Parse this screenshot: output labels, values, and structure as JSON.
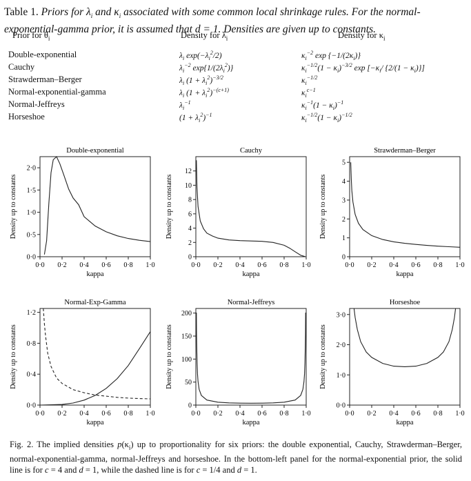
{
  "table": {
    "caption_label": "Table 1.",
    "caption_text": "Priors for λi and κi associated with some common local shrinkage rules. For the normal-exponential-gamma prior, it is assumed that d = 1. Densities are given up to constants.",
    "columns": [
      "Prior for θi",
      "Density for λi",
      "Density for κi"
    ],
    "rows": [
      {
        "prior": "Double-exponential",
        "lambda": "λi exp(−λi²/2)",
        "kappa": "κi⁻² exp{−1/(2κi)}"
      },
      {
        "prior": "Cauchy",
        "lambda": "λi⁻² exp{1/(2λi²)}",
        "kappa": "κi^−1/2(1 − κi)^−3/2 exp[−κi/{2/(1 − κi)}]"
      },
      {
        "prior": "Strawderman–Berger",
        "lambda": "λi (1 + λi²)^−3/2",
        "kappa": "κi^−1/2"
      },
      {
        "prior": "Normal-exponential-gamma",
        "lambda": "λi (1 + λi²)^−(c+1)",
        "kappa": "κi^c−1"
      },
      {
        "prior": "Normal-Jeffreys",
        "lambda": "λi⁻¹",
        "kappa": "κi⁻¹(1 − κi)⁻¹"
      },
      {
        "prior": "Horseshoe",
        "lambda": "(1 + λi²)⁻¹",
        "kappa": "κi^−1/2(1 − κi)^−1/2"
      }
    ]
  },
  "chart_data": [
    {
      "type": "line",
      "title": "Double-exponential",
      "xlabel": "kappa",
      "ylabel": "Density up to constants",
      "xlim": [
        0,
        1
      ],
      "ylim": [
        0,
        2.25
      ],
      "xticks": [
        "0·0",
        "0·2",
        "0·4",
        "0·6",
        "0·8",
        "1·0"
      ],
      "yticks": [
        "0·0",
        "0·5",
        "1·0",
        "1·5",
        "2·0"
      ],
      "series": [
        {
          "style": "solid",
          "x": [
            0.04,
            0.06,
            0.08,
            0.1,
            0.12,
            0.15,
            0.18,
            0.22,
            0.26,
            0.3,
            0.35,
            0.4,
            0.5,
            0.6,
            0.7,
            0.8,
            0.9,
            1.0
          ],
          "y": [
            0.05,
            0.36,
            1.19,
            1.89,
            2.18,
            2.28,
            2.09,
            1.81,
            1.52,
            1.32,
            1.17,
            0.9,
            0.69,
            0.56,
            0.47,
            0.41,
            0.37,
            0.34
          ]
        }
      ]
    },
    {
      "type": "line",
      "title": "Cauchy",
      "xlabel": "kappa",
      "ylabel": "Density up to constants",
      "xlim": [
        0,
        1
      ],
      "ylim": [
        0,
        14
      ],
      "xticks": [
        "0·0",
        "0·2",
        "0·4",
        "0·6",
        "0·8",
        "1·0"
      ],
      "yticks": [
        "0",
        "2",
        "4",
        "6",
        "8",
        "10",
        "12"
      ],
      "series": [
        {
          "style": "solid",
          "x": [
            0.005,
            0.01,
            0.02,
            0.04,
            0.07,
            0.1,
            0.15,
            0.2,
            0.3,
            0.4,
            0.5,
            0.6,
            0.7,
            0.8,
            0.85,
            0.9,
            0.95,
            0.99
          ],
          "y": [
            13.5,
            9.8,
            7.0,
            5.0,
            3.9,
            3.3,
            2.9,
            2.6,
            2.35,
            2.25,
            2.2,
            2.15,
            2.0,
            1.6,
            1.2,
            0.7,
            0.2,
            0.02
          ]
        }
      ]
    },
    {
      "type": "line",
      "title": "Strawderman–Berger",
      "xlabel": "kappa",
      "ylabel": "Density up to constants",
      "xlim": [
        0,
        1
      ],
      "ylim": [
        0,
        5.3
      ],
      "xticks": [
        "0·0",
        "0·2",
        "0·4",
        "0·6",
        "0·8",
        "1·0"
      ],
      "yticks": [
        "0",
        "1",
        "2",
        "3",
        "4",
        "5"
      ],
      "series": [
        {
          "style": "solid",
          "x": [
            0.01,
            0.015,
            0.02,
            0.03,
            0.05,
            0.08,
            0.12,
            0.2,
            0.3,
            0.4,
            0.5,
            0.6,
            0.7,
            0.8,
            0.9,
            1.0
          ],
          "y": [
            5.0,
            4.1,
            3.5,
            2.9,
            2.24,
            1.77,
            1.44,
            1.12,
            0.91,
            0.79,
            0.71,
            0.65,
            0.6,
            0.56,
            0.53,
            0.5
          ]
        }
      ]
    },
    {
      "type": "line",
      "title": "Normal-Exp-Gamma",
      "xlabel": "kappa",
      "ylabel": "Density up to constants",
      "xlim": [
        0,
        1
      ],
      "ylim": [
        0,
        1.25
      ],
      "xticks": [
        "0·0",
        "0·2",
        "0·4",
        "0·6",
        "0·8",
        "1·0"
      ],
      "yticks": [
        "0·0",
        "0·4",
        "0·8",
        "1·2"
      ],
      "series": [
        {
          "name": "c = 4, d = 1",
          "style": "solid",
          "x": [
            0,
            0.2,
            0.3,
            0.4,
            0.5,
            0.6,
            0.7,
            0.8,
            0.9,
            1.0
          ],
          "y": [
            0,
            0.008,
            0.027,
            0.064,
            0.125,
            0.216,
            0.343,
            0.512,
            0.729,
            0.95
          ]
        },
        {
          "name": "c = 1/4, d = 1",
          "style": "dashed",
          "x": [
            0.03,
            0.04,
            0.05,
            0.07,
            0.1,
            0.15,
            0.2,
            0.3,
            0.4,
            0.5,
            0.6,
            0.7,
            0.8,
            0.9,
            1.0
          ],
          "y": [
            1.25,
            1.05,
            0.9,
            0.67,
            0.5,
            0.35,
            0.28,
            0.2,
            0.16,
            0.13,
            0.115,
            0.1,
            0.09,
            0.085,
            0.08
          ]
        }
      ]
    },
    {
      "type": "line",
      "title": "Normal-Jeffreys",
      "xlabel": "kappa",
      "ylabel": "Density up to constants",
      "xlim": [
        0,
        1
      ],
      "ylim": [
        0,
        210
      ],
      "xticks": [
        "0·0",
        "0·2",
        "0·4",
        "0·6",
        "0·8",
        "1·0"
      ],
      "yticks": [
        "0",
        "50",
        "100",
        "150",
        "200"
      ],
      "series": [
        {
          "style": "solid",
          "x": [
            0.005,
            0.0065,
            0.008,
            0.011,
            0.015,
            0.02,
            0.03,
            0.05,
            0.1,
            0.2,
            0.3,
            0.4,
            0.5,
            0.6,
            0.7,
            0.8,
            0.9,
            0.95,
            0.97,
            0.98,
            0.985,
            0.989,
            0.992,
            0.9935,
            0.995
          ],
          "y": [
            201,
            155,
            126,
            92,
            68,
            51,
            34,
            21,
            11,
            6.3,
            4.8,
            4.2,
            4.0,
            4.2,
            4.8,
            6.3,
            11,
            21,
            34,
            51,
            68,
            92,
            126,
            155,
            201
          ]
        }
      ]
    },
    {
      "type": "line",
      "title": "Horseshoe",
      "xlabel": "kappa",
      "ylabel": "Density up to constants",
      "xlim": [
        0,
        1
      ],
      "ylim": [
        0,
        3.2
      ],
      "xticks": [
        "0·0",
        "0·2",
        "0·4",
        "0·6",
        "0·8",
        "1·0"
      ],
      "yticks": [
        "0·0",
        "1·0",
        "2·0",
        "3·0"
      ],
      "series": [
        {
          "style": "solid",
          "x": [
            0.04,
            0.05,
            0.07,
            0.1,
            0.15,
            0.2,
            0.3,
            0.4,
            0.5,
            0.6,
            0.7,
            0.8,
            0.85,
            0.9,
            0.93,
            0.95,
            0.96
          ],
          "y": [
            3.2,
            2.9,
            2.5,
            2.1,
            1.76,
            1.58,
            1.38,
            1.29,
            1.27,
            1.29,
            1.38,
            1.58,
            1.76,
            2.1,
            2.5,
            2.9,
            3.2
          ]
        }
      ]
    }
  ],
  "figure_caption": {
    "label": "Fig. 2.",
    "text": "The implied densities p(κi) up to proportionality for six priors: the double exponential, Cauchy, Strawderman–Berger, normal-exponential-gamma, normal-Jeffreys and horseshoe. In the bottom-left panel for the normal-exponential prior, the solid line is for c = 4 and d = 1, while the dashed line is for c = 1/4 and d = 1."
  }
}
